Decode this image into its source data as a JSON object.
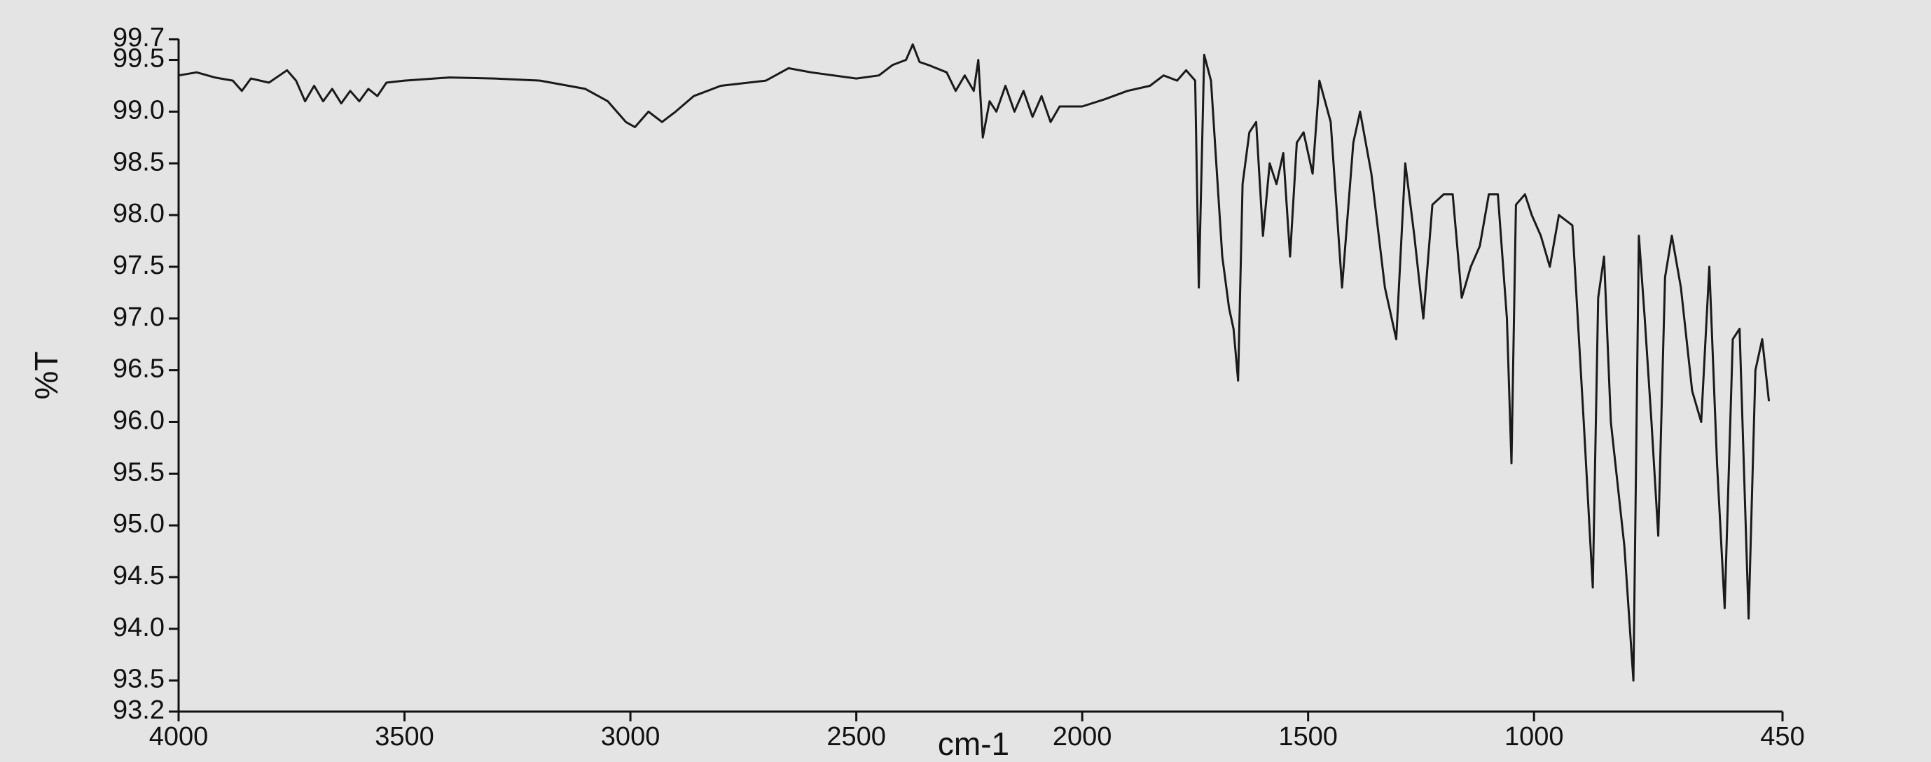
{
  "chart_data": {
    "type": "line",
    "x_label": "cm-1",
    "y_label": "%T",
    "xlim": [
      4000,
      450
    ],
    "xticks": [
      4000,
      3500,
      3000,
      2500,
      2000,
      1500,
      1000,
      450
    ],
    "ylim": [
      93.2,
      99.7
    ],
    "yticks": [
      99.7,
      99.5,
      {
        "value": 99,
        "label": "99.0"
      },
      98.5,
      {
        "value": 98,
        "label": "98.0"
      },
      97.5,
      {
        "value": 97,
        "label": "97.0"
      },
      96.5,
      {
        "value": 96,
        "label": "96.0"
      },
      95.5,
      {
        "value": 95,
        "label": "95.0"
      },
      94.5,
      {
        "value": 94,
        "label": "94.0"
      },
      93.5,
      93.2
    ],
    "color": "#1a1a1a",
    "grid": false,
    "x": [
      4000,
      3960,
      3920,
      3880,
      3860,
      3840,
      3800,
      3760,
      3740,
      3720,
      3700,
      3680,
      3660,
      3640,
      3620,
      3600,
      3580,
      3560,
      3540,
      3500,
      3400,
      3300,
      3200,
      3100,
      3050,
      3010,
      2990,
      2960,
      2930,
      2900,
      2860,
      2800,
      2700,
      2650,
      2600,
      2500,
      2450,
      2420,
      2390,
      2375,
      2360,
      2340,
      2300,
      2280,
      2260,
      2240,
      2230,
      2220,
      2205,
      2190,
      2170,
      2150,
      2130,
      2110,
      2090,
      2070,
      2050,
      2000,
      1950,
      1900,
      1850,
      1820,
      1790,
      1770,
      1750,
      1742,
      1730,
      1715,
      1690,
      1675,
      1665,
      1655,
      1645,
      1630,
      1615,
      1600,
      1585,
      1570,
      1555,
      1540,
      1525,
      1510,
      1490,
      1475,
      1450,
      1425,
      1400,
      1385,
      1360,
      1330,
      1305,
      1285,
      1265,
      1245,
      1225,
      1200,
      1180,
      1160,
      1140,
      1120,
      1100,
      1080,
      1060,
      1050,
      1040,
      1020,
      1005,
      985,
      965,
      945,
      915,
      890,
      870,
      858,
      845,
      830,
      800,
      780,
      768,
      755,
      740,
      725,
      710,
      695,
      675,
      650,
      630,
      612,
      595,
      578,
      560,
      545,
      525,
      510,
      495,
      480
    ],
    "values": [
      99.35,
      99.38,
      99.33,
      99.3,
      99.2,
      99.32,
      99.28,
      99.4,
      99.3,
      99.1,
      99.25,
      99.1,
      99.22,
      99.08,
      99.2,
      99.1,
      99.22,
      99.15,
      99.28,
      99.3,
      99.33,
      99.32,
      99.3,
      99.22,
      99.1,
      98.9,
      98.85,
      99.0,
      98.9,
      99.0,
      99.15,
      99.25,
      99.3,
      99.42,
      99.38,
      99.32,
      99.35,
      99.45,
      99.5,
      99.65,
      99.48,
      99.45,
      99.38,
      99.2,
      99.35,
      99.2,
      99.5,
      98.75,
      99.1,
      99.0,
      99.25,
      99.0,
      99.2,
      98.95,
      99.15,
      98.9,
      99.05,
      99.05,
      99.12,
      99.2,
      99.25,
      99.35,
      99.3,
      99.4,
      99.3,
      97.3,
      99.55,
      99.3,
      97.6,
      97.1,
      96.9,
      96.4,
      98.3,
      98.8,
      98.9,
      97.8,
      98.5,
      98.3,
      98.6,
      97.6,
      98.7,
      98.8,
      98.4,
      99.3,
      98.9,
      97.3,
      98.7,
      99.0,
      98.4,
      97.3,
      96.8,
      98.5,
      97.8,
      97.0,
      98.1,
      98.2,
      98.2,
      97.2,
      97.5,
      97.7,
      98.2,
      98.2,
      97.0,
      95.6,
      98.1,
      98.2,
      98.0,
      97.8,
      97.5,
      98.0,
      97.9,
      96.0,
      94.4,
      97.2,
      97.6,
      96.0,
      94.8,
      93.5,
      97.8,
      97.0,
      96.0,
      94.9,
      97.4,
      97.8,
      97.3,
      96.3,
      96.0,
      97.5,
      95.6,
      94.2,
      96.8,
      96.9,
      94.1,
      96.5,
      96.8,
      96.2
    ]
  }
}
